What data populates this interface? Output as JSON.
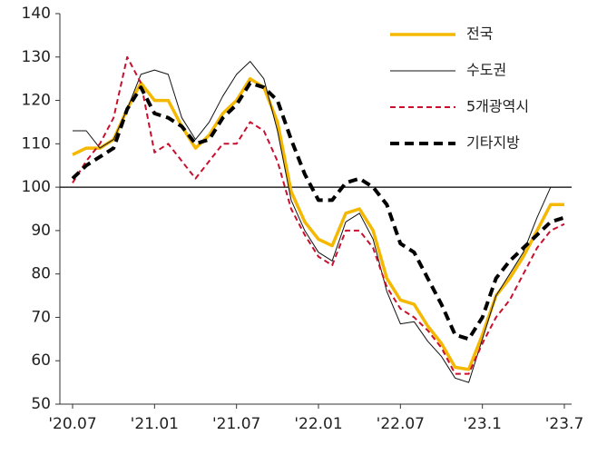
{
  "chart_data": {
    "type": "line",
    "categories": [
      "'20.07",
      null,
      null,
      null,
      null,
      null,
      "'21.01",
      null,
      null,
      null,
      null,
      null,
      "'21.07",
      null,
      null,
      null,
      null,
      null,
      "'22.01",
      null,
      null,
      null,
      null,
      null,
      "'22.07",
      null,
      null,
      null,
      null,
      null,
      "'23.1",
      null,
      null,
      null,
      null,
      null,
      "'23.7"
    ],
    "ylim": [
      50,
      140
    ],
    "yticks": [
      50,
      60,
      70,
      80,
      90,
      100,
      110,
      120,
      130,
      140
    ],
    "hline": 100,
    "series": [
      {
        "name": "전국",
        "color": "#f5b800",
        "style": "solid",
        "width": 3.5,
        "values": [
          107.5,
          109,
          109,
          111,
          118,
          124,
          120,
          120,
          114,
          109,
          112,
          117,
          120,
          125,
          123,
          115,
          99,
          92,
          88,
          86.5,
          94,
          95,
          90,
          79,
          74,
          73,
          68,
          64,
          58.5,
          58,
          66,
          75,
          79,
          84,
          90,
          96,
          96
        ]
      },
      {
        "name": "수도권",
        "color": "#111111",
        "style": "solid",
        "width": 1,
        "values": [
          113,
          113,
          109,
          111,
          118,
          126,
          127,
          126,
          116,
          111,
          115,
          121,
          126,
          129,
          125,
          113,
          97,
          90,
          85,
          83,
          92,
          94,
          88,
          76,
          68.5,
          69,
          64.5,
          61,
          56,
          55,
          65,
          75,
          80,
          85,
          93,
          100,
          100
        ]
      },
      {
        "name": "5개광역시",
        "color": "#c8102e",
        "style": "dashed",
        "width": 2,
        "values": [
          101,
          106,
          110,
          116,
          130,
          124,
          108,
          110,
          106,
          102,
          106,
          110,
          110,
          115,
          113,
          106,
          95,
          89,
          84,
          82,
          90,
          90,
          86,
          77,
          72,
          70,
          67,
          63,
          57,
          57,
          64,
          70,
          74,
          80,
          86,
          90,
          91.5
        ]
      },
      {
        "name": "기타지방",
        "color": "#000000",
        "style": "dashed",
        "width": 4,
        "values": [
          102,
          105,
          107,
          109,
          118,
          123,
          117,
          116,
          114,
          110,
          111,
          116,
          119,
          124,
          123,
          120,
          111,
          103,
          97,
          97,
          101,
          102,
          100,
          96,
          87,
          85,
          79,
          73,
          66,
          65,
          70,
          79,
          83,
          86,
          89,
          92,
          93
        ]
      }
    ],
    "legend": "upper right"
  }
}
